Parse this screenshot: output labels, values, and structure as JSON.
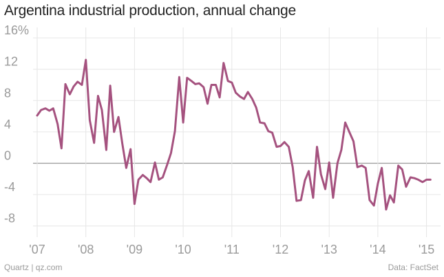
{
  "chart_data": {
    "type": "line",
    "title": "Argentina industrial production, annual change",
    "xlabel": "",
    "ylabel": "",
    "ylim": [
      -10,
      17
    ],
    "xlim": [
      2006.8,
      2015.3
    ],
    "yticks": [
      {
        "value": 16,
        "label": "16%"
      },
      {
        "value": 12,
        "label": "12"
      },
      {
        "value": 8,
        "label": "8"
      },
      {
        "value": 4,
        "label": "4"
      },
      {
        "value": 0,
        "label": "0"
      },
      {
        "value": -4,
        "label": "-4"
      },
      {
        "value": -8,
        "label": "-8"
      }
    ],
    "xticks": [
      {
        "value": 2007,
        "label": "'07"
      },
      {
        "value": 2008,
        "label": "'08"
      },
      {
        "value": 2009,
        "label": "'09"
      },
      {
        "value": 2010,
        "label": "'10"
      },
      {
        "value": 2011,
        "label": "'11"
      },
      {
        "value": 2012,
        "label": "'12"
      },
      {
        "value": 2013,
        "label": "'13"
      },
      {
        "value": 2014,
        "label": "'14"
      },
      {
        "value": 2015,
        "label": "'15"
      }
    ],
    "series": [
      {
        "name": "Industrial production, annual change (%)",
        "color": "#a5527f",
        "points": [
          [
            2007.0,
            6.1
          ],
          [
            2007.08,
            6.8
          ],
          [
            2007.17,
            7.0
          ],
          [
            2007.25,
            6.7
          ],
          [
            2007.33,
            7.0
          ],
          [
            2007.42,
            5.0
          ],
          [
            2007.5,
            1.9
          ],
          [
            2007.58,
            10.1
          ],
          [
            2007.67,
            8.8
          ],
          [
            2007.75,
            9.8
          ],
          [
            2007.83,
            10.4
          ],
          [
            2007.92,
            10.0
          ],
          [
            2008.0,
            13.2
          ],
          [
            2008.08,
            5.5
          ],
          [
            2008.17,
            2.6
          ],
          [
            2008.25,
            8.6
          ],
          [
            2008.33,
            6.8
          ],
          [
            2008.42,
            1.7
          ],
          [
            2008.5,
            9.9
          ],
          [
            2008.58,
            4.0
          ],
          [
            2008.67,
            5.9
          ],
          [
            2008.75,
            2.5
          ],
          [
            2008.83,
            -0.6
          ],
          [
            2008.92,
            1.8
          ],
          [
            2009.0,
            -5.2
          ],
          [
            2009.08,
            -2.1
          ],
          [
            2009.17,
            -1.5
          ],
          [
            2009.25,
            -1.9
          ],
          [
            2009.33,
            -2.4
          ],
          [
            2009.42,
            0.1
          ],
          [
            2009.5,
            -2.1
          ],
          [
            2009.58,
            -1.8
          ],
          [
            2009.67,
            -0.2
          ],
          [
            2009.75,
            1.3
          ],
          [
            2009.83,
            4.1
          ],
          [
            2009.92,
            11.0
          ],
          [
            2010.0,
            5.2
          ],
          [
            2010.08,
            10.9
          ],
          [
            2010.17,
            10.5
          ],
          [
            2010.25,
            10.1
          ],
          [
            2010.33,
            10.2
          ],
          [
            2010.42,
            9.7
          ],
          [
            2010.5,
            7.6
          ],
          [
            2010.58,
            10.0
          ],
          [
            2010.67,
            10.0
          ],
          [
            2010.75,
            8.4
          ],
          [
            2010.83,
            12.8
          ],
          [
            2010.92,
            10.5
          ],
          [
            2011.0,
            10.3
          ],
          [
            2011.08,
            9.0
          ],
          [
            2011.17,
            8.5
          ],
          [
            2011.25,
            8.2
          ],
          [
            2011.33,
            9.1
          ],
          [
            2011.42,
            8.2
          ],
          [
            2011.5,
            7.1
          ],
          [
            2011.58,
            5.2
          ],
          [
            2011.67,
            5.1
          ],
          [
            2011.75,
            4.1
          ],
          [
            2011.83,
            3.9
          ],
          [
            2011.92,
            2.1
          ],
          [
            2012.0,
            2.2
          ],
          [
            2012.08,
            2.7
          ],
          [
            2012.17,
            2.1
          ],
          [
            2012.25,
            -0.5
          ],
          [
            2012.33,
            -4.8
          ],
          [
            2012.42,
            -4.7
          ],
          [
            2012.5,
            -2.2
          ],
          [
            2012.58,
            -1.0
          ],
          [
            2012.67,
            -4.4
          ],
          [
            2012.75,
            2.1
          ],
          [
            2012.83,
            -1.4
          ],
          [
            2012.92,
            -3.3
          ],
          [
            2013.0,
            0.1
          ],
          [
            2013.08,
            -4.4
          ],
          [
            2013.17,
            0.0
          ],
          [
            2013.25,
            1.7
          ],
          [
            2013.33,
            5.2
          ],
          [
            2013.42,
            3.9
          ],
          [
            2013.5,
            2.8
          ],
          [
            2013.58,
            -0.5
          ],
          [
            2013.67,
            -0.3
          ],
          [
            2013.75,
            -0.6
          ],
          [
            2013.83,
            -4.7
          ],
          [
            2013.92,
            -5.4
          ],
          [
            2014.0,
            -2.6
          ],
          [
            2014.08,
            -0.6
          ],
          [
            2014.17,
            -5.9
          ],
          [
            2014.25,
            -4.1
          ],
          [
            2014.33,
            -5.0
          ],
          [
            2014.42,
            -0.3
          ],
          [
            2014.5,
            -0.8
          ],
          [
            2014.58,
            -3.0
          ],
          [
            2014.67,
            -1.8
          ],
          [
            2014.75,
            -1.9
          ],
          [
            2014.83,
            -2.1
          ],
          [
            2014.92,
            -2.4
          ],
          [
            2015.0,
            -2.1
          ],
          [
            2015.08,
            -2.1
          ]
        ]
      }
    ],
    "grid": true,
    "legend": "none"
  },
  "footer": {
    "source_left": "Quartz | qz.com",
    "source_right": "Data: FactSet"
  },
  "colors": {
    "line": "#a5527f",
    "grid": "#e6e6e6",
    "zero_line": "#9a9a9a",
    "text_muted": "#9a9a9a",
    "title": "#222222"
  }
}
